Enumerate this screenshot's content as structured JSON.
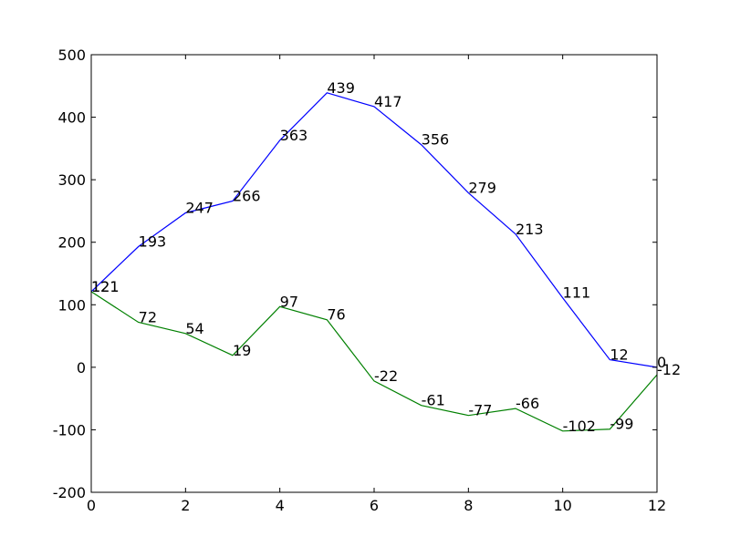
{
  "chart_data": {
    "type": "line",
    "title": "",
    "xlabel": "",
    "ylabel": "",
    "xlim": [
      0,
      12
    ],
    "ylim": [
      -200,
      500
    ],
    "grid": false,
    "x": [
      0,
      1,
      2,
      3,
      4,
      5,
      6,
      7,
      8,
      9,
      10,
      11,
      12
    ],
    "xticks": [
      0,
      2,
      4,
      6,
      8,
      10,
      12
    ],
    "yticks": [
      -200,
      -100,
      0,
      100,
      200,
      300,
      400,
      500
    ],
    "series": [
      {
        "color": "#0000ff",
        "values": [
          121,
          193,
          247,
          266,
          363,
          439,
          417,
          356,
          279,
          213,
          111,
          12,
          0
        ],
        "labels": [
          "121",
          "193",
          "247",
          "266",
          "363",
          "439",
          "417",
          "356",
          "279",
          "213",
          "111",
          "12",
          "0"
        ]
      },
      {
        "color": "#008000",
        "values": [
          121,
          72,
          54,
          19,
          97,
          76,
          -22,
          -61,
          -77,
          -66,
          -102,
          -99,
          -12
        ],
        "labels": [
          "121",
          "72",
          "54",
          "19",
          "97",
          "76",
          "-22",
          "-61",
          "-77",
          "-66",
          "-102",
          "-99",
          "-12"
        ]
      }
    ]
  }
}
